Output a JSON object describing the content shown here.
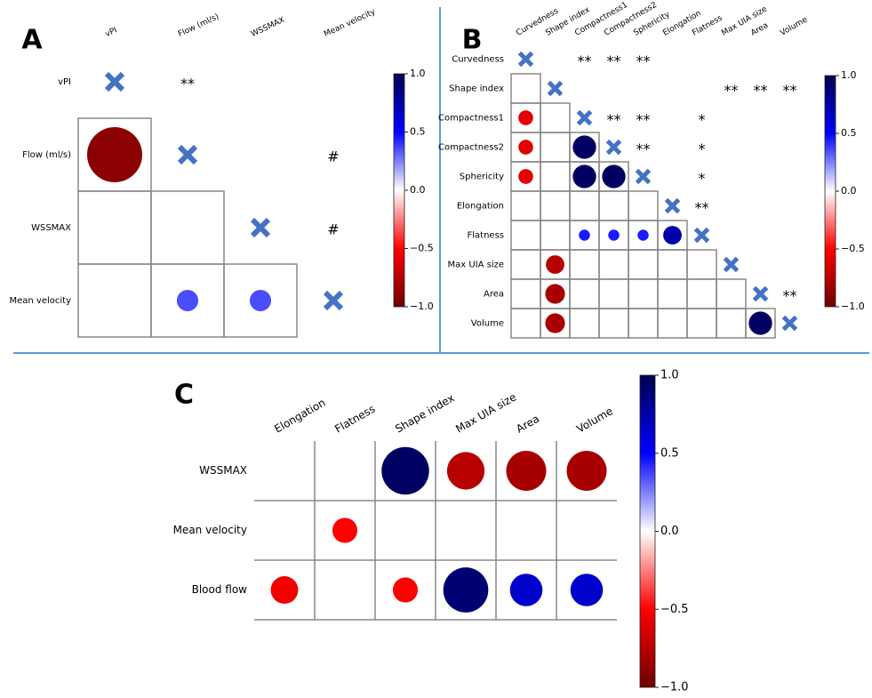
{
  "chart_data": [
    {
      "type": "correlation",
      "panel": "A",
      "rows": [
        "vPI",
        "Flow (ml/s)",
        "WSSMAX",
        "Mean velocity"
      ],
      "columns": [
        "vPI",
        "Flow (ml/s)",
        "WSSMAX",
        "Mean velocity"
      ],
      "values": [
        [
          null,
          null,
          null,
          null
        ],
        [
          -0.9,
          null,
          null,
          null
        ],
        [
          null,
          null,
          null,
          null
        ],
        [
          null,
          0.35,
          0.35,
          null
        ]
      ],
      "diagonal": true,
      "annotations": [
        {
          "row": 0,
          "column": 1,
          "text": "**"
        },
        {
          "row": 1,
          "column": 3,
          "text": "#"
        },
        {
          "row": 2,
          "column": 3,
          "text": "#"
        }
      ],
      "clim": [
        -1,
        1
      ],
      "cticks": [
        {
          "value": 1,
          "label": "1.0"
        },
        {
          "value": 0.5,
          "label": "0.5"
        },
        {
          "value": 0,
          "label": "0.0"
        },
        {
          "value": -0.5,
          "label": "−0.5"
        },
        {
          "value": -1,
          "label": "−1.0"
        }
      ]
    },
    {
      "type": "correlation",
      "panel": "B",
      "rows": [
        "Curvedness",
        "Shape index",
        "Compactness1",
        "Compactness2",
        "Sphericity",
        "Elongation",
        "Flatness",
        "Max UIA size",
        "Area",
        "Volume"
      ],
      "columns": [
        "Curvedness",
        "Shape index",
        "Compactness1",
        "Compactness2",
        "Sphericity",
        "Elongation",
        "Flatness",
        "Max UIA size",
        "Area",
        "Volume"
      ],
      "values": [
        [
          null,
          null,
          null,
          null,
          null,
          null,
          null,
          null,
          null,
          null
        ],
        [
          null,
          null,
          null,
          null,
          null,
          null,
          null,
          null,
          null,
          null
        ],
        [
          -0.6,
          null,
          null,
          null,
          null,
          null,
          null,
          null,
          null,
          null
        ],
        [
          -0.6,
          null,
          0.95,
          null,
          null,
          null,
          null,
          null,
          null,
          null
        ],
        [
          -0.6,
          null,
          0.95,
          0.95,
          null,
          null,
          null,
          null,
          null,
          null
        ],
        [
          null,
          null,
          null,
          null,
          null,
          null,
          null,
          null,
          null,
          null
        ],
        [
          null,
          null,
          0.45,
          0.45,
          0.45,
          0.75,
          null,
          null,
          null,
          null
        ],
        [
          null,
          -0.75,
          null,
          null,
          null,
          null,
          null,
          null,
          null,
          null
        ],
        [
          null,
          -0.8,
          null,
          null,
          null,
          null,
          null,
          null,
          null,
          null
        ],
        [
          null,
          -0.8,
          null,
          null,
          null,
          null,
          null,
          null,
          0.95,
          null
        ]
      ],
      "diagonal": true,
      "annotations": [
        {
          "row": 0,
          "column": 2,
          "text": "**"
        },
        {
          "row": 0,
          "column": 3,
          "text": "**"
        },
        {
          "row": 0,
          "column": 4,
          "text": "**"
        },
        {
          "row": 1,
          "column": 7,
          "text": "**"
        },
        {
          "row": 1,
          "column": 8,
          "text": "**"
        },
        {
          "row": 1,
          "column": 9,
          "text": "**"
        },
        {
          "row": 2,
          "column": 3,
          "text": "**"
        },
        {
          "row": 2,
          "column": 4,
          "text": "**"
        },
        {
          "row": 2,
          "column": 6,
          "text": "*"
        },
        {
          "row": 3,
          "column": 4,
          "text": "**"
        },
        {
          "row": 3,
          "column": 6,
          "text": "*"
        },
        {
          "row": 4,
          "column": 6,
          "text": "*"
        },
        {
          "row": 5,
          "column": 6,
          "text": "**"
        },
        {
          "row": 8,
          "column": 9,
          "text": "**"
        }
      ],
      "clim": [
        -1,
        1
      ],
      "cticks": [
        {
          "value": 1,
          "label": "1.0"
        },
        {
          "value": 0.5,
          "label": "0.5"
        },
        {
          "value": 0,
          "label": "0.0"
        },
        {
          "value": -0.5,
          "label": "−0.5"
        },
        {
          "value": -1,
          "label": "−1.0"
        }
      ]
    },
    {
      "type": "correlation",
      "panel": "C",
      "rows": [
        "WSSMAX",
        "Mean velocity",
        "Blood flow"
      ],
      "columns": [
        "Elongation",
        "Flatness",
        "Shape index",
        "Max UIA size",
        "Area",
        "Volume"
      ],
      "values": [
        [
          null,
          null,
          0.95,
          -0.75,
          -0.8,
          -0.8
        ],
        [
          null,
          -0.5,
          null,
          null,
          null,
          null
        ],
        [
          -0.55,
          null,
          -0.5,
          0.9,
          0.65,
          0.65
        ]
      ],
      "diagonal": false,
      "annotations": [],
      "clim": [
        -1,
        1
      ],
      "cticks": [
        {
          "value": 1,
          "label": "1.0"
        },
        {
          "value": 0.5,
          "label": "0.5"
        },
        {
          "value": 0,
          "label": "0.0"
        },
        {
          "value": -0.5,
          "label": "−0.5"
        },
        {
          "value": -1,
          "label": "−1.0"
        }
      ]
    }
  ]
}
